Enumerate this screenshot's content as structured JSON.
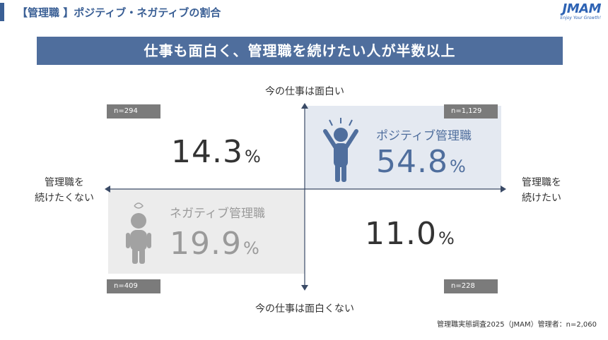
{
  "header": {
    "title": "【管理職 】ポジティブ・ネガティブの割合",
    "logo_text": "JMAM",
    "logo_tagline": "Enjoy Your Growth!"
  },
  "banner": "仕事も面白く、管理職を続けたい人が半数以上",
  "axes": {
    "top": "今の仕事は面白い",
    "bottom": "今の仕事は面白くない",
    "left_line1": "管理職を",
    "left_line2": "続けたくない",
    "right_line1": "管理職を",
    "right_line2": "続けたい"
  },
  "chart_data": {
    "type": "quadrant",
    "quadrants": [
      {
        "position": "top-left",
        "value": 14.3,
        "value_text": "14.3",
        "unit": "%",
        "n_label": "n=294",
        "name": ""
      },
      {
        "position": "top-right",
        "value": 54.8,
        "value_text": "54.8",
        "unit": "%",
        "n_label": "n=1,129",
        "name": "ポジティブ管理職",
        "highlight_color": "#e4e9f1",
        "color": "#4f6e9d"
      },
      {
        "position": "bottom-left",
        "value": 19.9,
        "value_text": "19.9",
        "unit": "%",
        "n_label": "n=409",
        "name": "ネガティブ管理職",
        "highlight_color": "#ececec",
        "color": "#9a9a9a"
      },
      {
        "position": "bottom-right",
        "value": 11.0,
        "value_text": "11.0",
        "unit": "%",
        "n_label": "n=228",
        "name": ""
      }
    ]
  },
  "source": "管理職実態調査2025（JMAM）管理者：n=2,060"
}
